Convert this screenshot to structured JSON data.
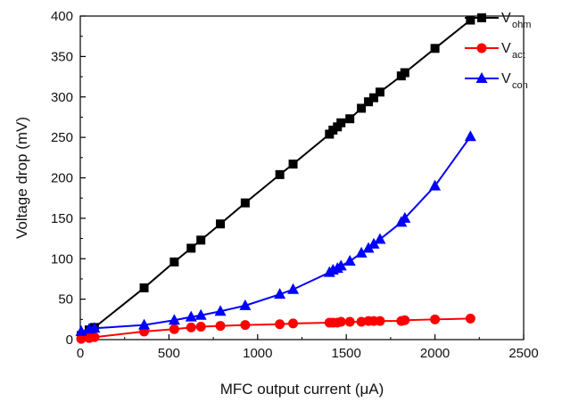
{
  "chart_data": {
    "type": "line",
    "xlabel": "MFC output current (μA)",
    "ylabel": "Voltage drop (mV)",
    "xlim": [
      0,
      2500
    ],
    "ylim": [
      0,
      400
    ],
    "xticks": [
      "0",
      "500",
      "1000",
      "1500",
      "2000",
      "2500"
    ],
    "yticks": [
      "0",
      "50",
      "100",
      "150",
      "200",
      "250",
      "300",
      "350",
      "400"
    ],
    "grid": false,
    "legend": "top-right",
    "series": [
      {
        "name": "Vohm",
        "label_main": "V",
        "label_sub": "ohm",
        "color": "#000000",
        "marker": "square",
        "x": [
          5,
          50,
          80,
          360,
          530,
          625,
          680,
          790,
          930,
          1125,
          1200,
          1405,
          1425,
          1450,
          1470,
          1520,
          1585,
          1625,
          1655,
          1690,
          1810,
          1830,
          2000,
          2200
        ],
        "y": [
          5,
          12,
          15,
          64,
          96,
          113,
          123,
          143,
          169,
          204,
          217,
          254,
          259,
          263,
          268,
          273,
          286,
          294,
          299,
          306,
          326,
          330,
          360,
          395
        ]
      },
      {
        "name": "Vact",
        "label_main": "V",
        "label_sub": "act",
        "color": "#ff0000",
        "marker": "circle",
        "x": [
          5,
          50,
          80,
          360,
          530,
          625,
          680,
          790,
          930,
          1125,
          1200,
          1405,
          1425,
          1450,
          1470,
          1520,
          1585,
          1625,
          1655,
          1690,
          1810,
          1830,
          2000,
          2200
        ],
        "y": [
          1,
          2,
          3,
          10,
          13,
          15,
          16,
          17,
          18,
          19,
          20,
          21,
          21,
          21,
          22,
          22,
          22,
          23,
          23,
          23,
          23,
          24,
          25,
          26
        ]
      },
      {
        "name": "Vcon",
        "label_main": "V",
        "label_sub": "con",
        "color": "#0000ff",
        "marker": "triangle",
        "x": [
          5,
          50,
          80,
          360,
          530,
          625,
          680,
          790,
          930,
          1125,
          1200,
          1405,
          1425,
          1450,
          1470,
          1520,
          1585,
          1625,
          1655,
          1690,
          1810,
          1830,
          2000,
          2200
        ],
        "y": [
          10,
          13,
          14,
          18,
          24,
          28,
          30,
          35,
          42,
          56,
          62,
          83,
          86,
          88,
          91,
          97,
          107,
          113,
          118,
          124,
          145,
          150,
          190,
          251
        ]
      }
    ]
  }
}
